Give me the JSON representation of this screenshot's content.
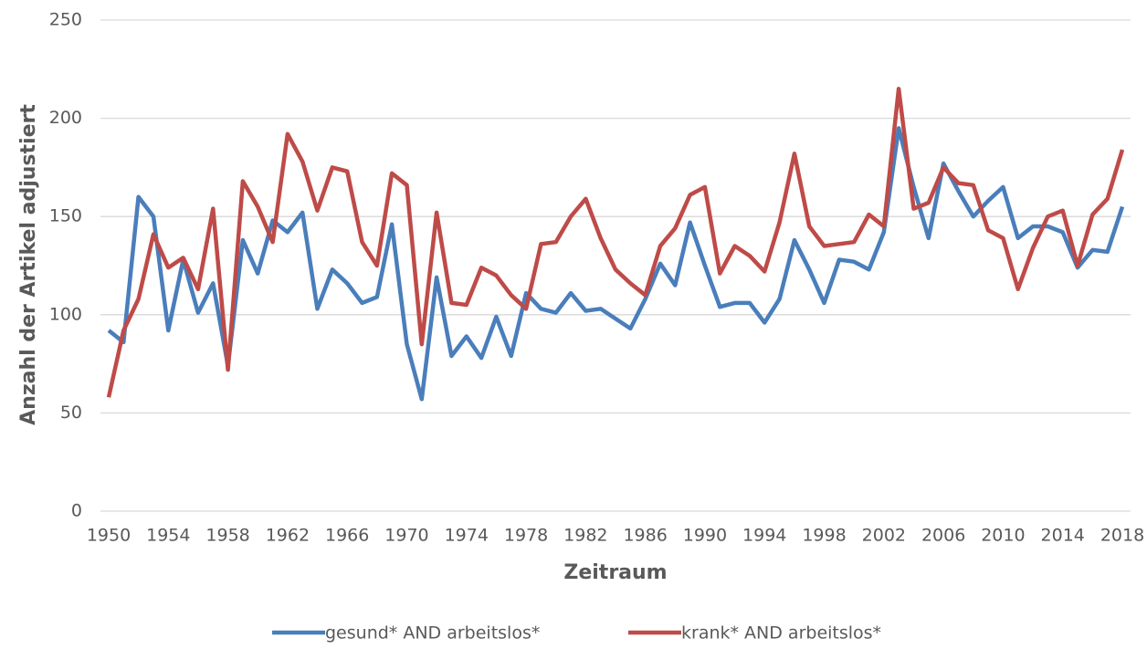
{
  "chart_data": {
    "type": "line",
    "x_label": "Zeitraum",
    "y_label": "Anzahl der Artikel adjustiert",
    "x": [
      1950,
      1951,
      1952,
      1953,
      1954,
      1955,
      1956,
      1957,
      1958,
      1959,
      1960,
      1961,
      1962,
      1963,
      1964,
      1965,
      1966,
      1967,
      1968,
      1969,
      1970,
      1971,
      1972,
      1973,
      1974,
      1975,
      1976,
      1977,
      1978,
      1979,
      1980,
      1981,
      1982,
      1983,
      1984,
      1985,
      1986,
      1987,
      1988,
      1989,
      1990,
      1991,
      1992,
      1993,
      1994,
      1995,
      1996,
      1997,
      1998,
      1999,
      2000,
      2001,
      2002,
      2003,
      2004,
      2005,
      2006,
      2007,
      2008,
      2009,
      2010,
      2011,
      2012,
      2013,
      2014,
      2015,
      2016,
      2017,
      2018
    ],
    "series": [
      {
        "name": "gesund* AND arbeitslos*",
        "color": "#4a7ebb",
        "values": [
          92,
          86,
          160,
          150,
          92,
          128,
          101,
          116,
          74,
          138,
          121,
          148,
          142,
          152,
          103,
          123,
          116,
          106,
          109,
          146,
          85,
          57,
          119,
          79,
          89,
          78,
          99,
          79,
          111,
          103,
          101,
          111,
          102,
          103,
          98,
          93,
          108,
          126,
          115,
          147,
          125,
          104,
          106,
          106,
          96,
          108,
          138,
          123,
          106,
          128,
          127,
          123,
          142,
          195,
          165,
          139,
          177,
          163,
          150,
          158,
          165,
          139,
          145,
          145,
          142,
          124,
          133,
          132,
          155
        ]
      },
      {
        "name": "krank* AND arbeitslos*",
        "color": "#be4b48",
        "values": [
          58,
          92,
          108,
          141,
          124,
          129,
          113,
          154,
          72,
          168,
          155,
          137,
          192,
          178,
          153,
          175,
          173,
          137,
          125,
          172,
          166,
          85,
          152,
          106,
          105,
          124,
          120,
          110,
          103,
          136,
          137,
          150,
          159,
          139,
          123,
          116,
          110,
          135,
          144,
          161,
          165,
          121,
          135,
          130,
          122,
          147,
          182,
          145,
          135,
          136,
          137,
          151,
          145,
          215,
          154,
          157,
          175,
          167,
          166,
          143,
          139,
          113,
          134,
          150,
          153,
          125,
          151,
          159,
          184
        ]
      }
    ],
    "xlim": [
      1950,
      2018
    ],
    "xticks": [
      1950,
      1954,
      1958,
      1962,
      1966,
      1970,
      1974,
      1978,
      1982,
      1986,
      1990,
      1994,
      1998,
      2002,
      2006,
      2010,
      2014,
      2018
    ],
    "ylim": [
      0,
      250
    ],
    "yticks": [
      0,
      50,
      100,
      150,
      200,
      250
    ],
    "grid": true,
    "legend": "bottom"
  }
}
